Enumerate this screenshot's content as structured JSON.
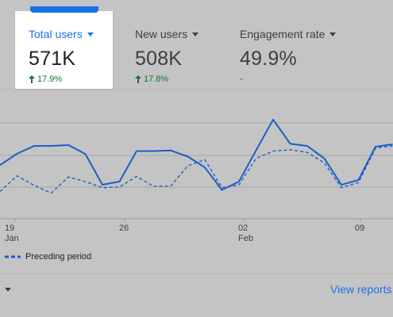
{
  "metrics": [
    {
      "label": "Total users",
      "value": "571K",
      "change": "17.9%",
      "trend": "up",
      "active": true
    },
    {
      "label": "New users",
      "value": "508K",
      "change": "17.8%",
      "trend": "up",
      "active": false
    },
    {
      "label": "Engagement rate",
      "value": "49.9%",
      "change": "-",
      "trend": "none",
      "active": false
    }
  ],
  "colors": {
    "accent": "#1a73e8",
    "positive": "#137333",
    "current_line": "#1a5fc7",
    "preceding_line": "#1a5fc7",
    "grid": "#a8a8a8"
  },
  "chart_data": {
    "type": "line",
    "x_ticks": [
      {
        "day": "19",
        "month": "Jan"
      },
      {
        "day": "26",
        "month": ""
      },
      {
        "day": "02",
        "month": "Feb"
      },
      {
        "day": "09",
        "month": ""
      }
    ],
    "legend": [
      {
        "name": "Preceding period",
        "style": "dashed"
      }
    ],
    "grid": true,
    "series": [
      {
        "style": "solid",
        "values": [
          6.8,
          10.4,
          12.8,
          12.8,
          13.1,
          10.3,
          0.7,
          1.7,
          11.2,
          11.2,
          11.4,
          9.5,
          6.1,
          -0.9,
          1.7,
          11.4,
          21.0,
          13.5,
          12.8,
          8.9,
          0.7,
          2.2,
          12.6,
          13.3
        ]
      },
      {
        "name": "Preceding period",
        "style": "dashed",
        "values": [
          -1.4,
          3.5,
          0.5,
          -1.9,
          3.1,
          1.7,
          -0.2,
          0.0,
          3.3,
          0.2,
          0.3,
          6.6,
          8.5,
          -0.2,
          0.7,
          8.9,
          11.2,
          11.6,
          10.8,
          7.5,
          -0.2,
          1.4,
          12.1,
          12.8
        ]
      }
    ]
  },
  "footer": {
    "view_reports": "View reports"
  }
}
